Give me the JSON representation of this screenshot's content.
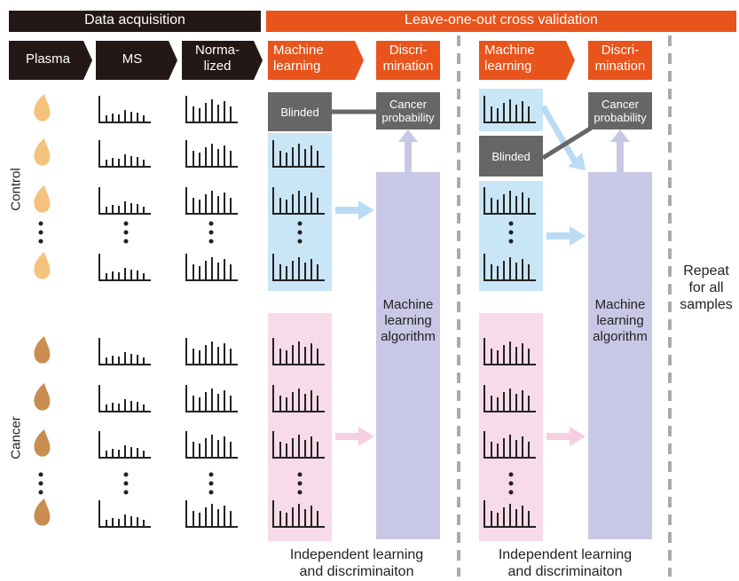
{
  "header": {
    "data_acquisition": "Data acquisition",
    "loocv": "Leave-one-out cross validation"
  },
  "steps": {
    "plasma": "Plasma",
    "ms": "MS",
    "normalized": "Norma-\nlized",
    "ml_left": "Machine\nlearning",
    "disc_left": "Discri-\nmination",
    "ml_right": "Machine\nlearning",
    "disc_right": "Discri-\nmination"
  },
  "groups": {
    "control": "Control",
    "cancer": "Cancer"
  },
  "boxes": {
    "blinded_left": "Blinded",
    "blinded_right": "Blinded",
    "cancer_prob_left": "Cancer\nprobability",
    "cancer_prob_right": "Cancer\nprobability",
    "ml_algo_left": "Machine\nlearning\nalgorithm",
    "ml_algo_right": "Machine\nlearning\nalgorithm"
  },
  "captions": {
    "left": "Independent learning\nand discriminaiton",
    "right": "Independent learning\nand discriminaiton",
    "repeat": "Repeat\nfor all\nsamples"
  },
  "colors": {
    "dark": "#231815",
    "orange": "#e8541c",
    "control_drop": "#f5c27d",
    "cancer_drop": "#c98d52",
    "blue_panel": "#c9e6f7",
    "pink_panel": "#f7dbe8",
    "lavender": "#c9c7e6",
    "gray_box": "#666666"
  }
}
